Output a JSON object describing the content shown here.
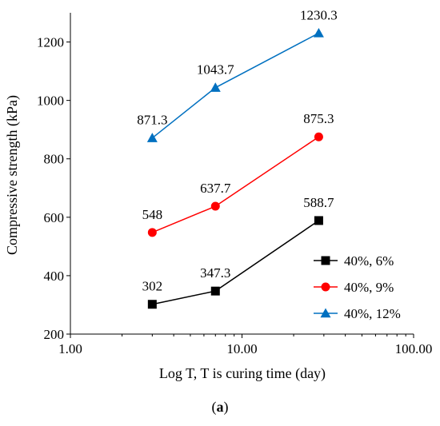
{
  "chart_data": {
    "type": "line",
    "x_scale": "log",
    "xlabel": "Log T, T is curing time (day)",
    "ylabel": "Compressive strength (kPa)",
    "caption_bold": "a",
    "xlim": [
      1,
      100
    ],
    "ylim": [
      200,
      1300
    ],
    "xticks": [
      "1.00",
      "10.00",
      "100.00"
    ],
    "yticks": [
      "200",
      "400",
      "600",
      "800",
      "1000",
      "1200"
    ],
    "legend_position": "bottom-right",
    "grid": false,
    "series": [
      {
        "name": "40%, 6%",
        "marker": "square",
        "color": "#000000",
        "x": [
          3,
          7,
          28
        ],
        "y": [
          302,
          347.3,
          588.7
        ],
        "labels": [
          "302",
          "347.3",
          "588.7"
        ]
      },
      {
        "name": "40%, 9%",
        "marker": "circle",
        "color": "#ff0000",
        "x": [
          3,
          7,
          28
        ],
        "y": [
          548,
          637.7,
          875.3
        ],
        "labels": [
          "548",
          "637.7",
          "875.3"
        ]
      },
      {
        "name": "40%, 12%",
        "marker": "triangle",
        "color": "#0070c0",
        "x": [
          3,
          7,
          28
        ],
        "y": [
          871.3,
          1043.7,
          1230.3
        ],
        "labels": [
          "871.3",
          "1043.7",
          "1230.3"
        ]
      }
    ]
  }
}
